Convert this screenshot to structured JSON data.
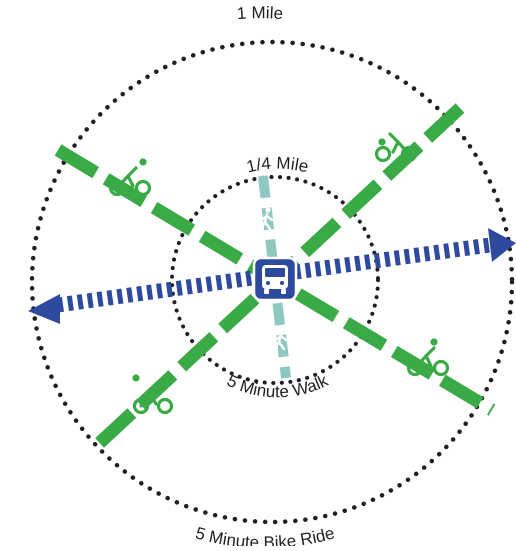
{
  "labels": {
    "outer_radius": "1 Mile",
    "inner_radius": "1/4 Mile",
    "inner_caption": "5 Minute Walk",
    "outer_caption": "5 Minute Bike Ride"
  },
  "icons": {
    "transit_stop": "bus-icon",
    "bike": "cyclist-icon",
    "walk": "pedestrian-icon"
  },
  "colors": {
    "bike_route": "#3aaa47",
    "walk_route": "#8ec8c0",
    "transit_route": "#2e4a9e",
    "radius_ring": "#231f20",
    "background": "#ffffff"
  }
}
